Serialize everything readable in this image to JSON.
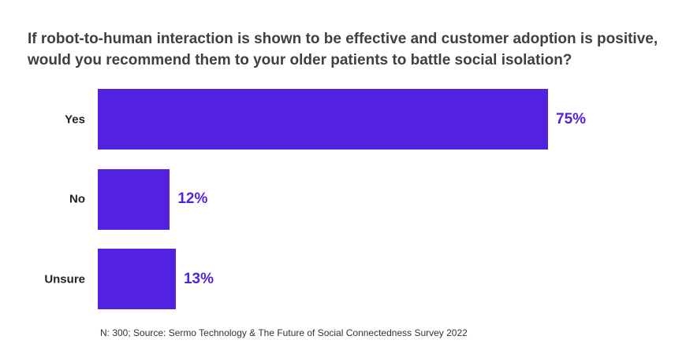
{
  "chart_data": {
    "type": "bar",
    "orientation": "horizontal",
    "title": "If robot-to-human interaction is shown to be effective and customer adoption is positive, would you recommend them to your older patients to battle social isolation?",
    "categories": [
      "Yes",
      "No",
      "Unsure"
    ],
    "values": [
      75,
      12,
      13
    ],
    "value_labels": [
      "75%",
      "12%",
      "13%"
    ],
    "xlim": [
      0,
      100
    ],
    "grid": false,
    "colors": {
      "bar": "#5322e0",
      "label": "#5322e0",
      "title": "#404040"
    },
    "note": "N: 300; Source: Sermo Technology & The Future of Social Connectedness Survey 2022"
  }
}
